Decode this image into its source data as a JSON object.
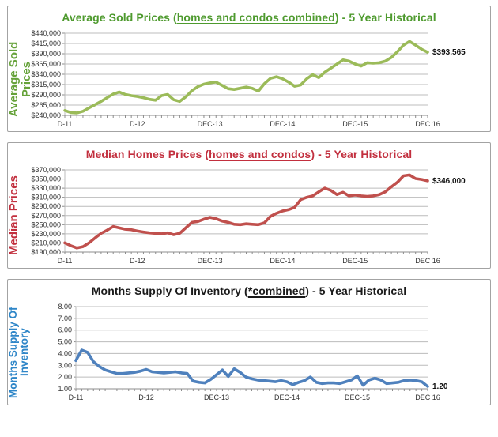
{
  "page": {
    "background": "#ffffff"
  },
  "panels": [
    {
      "title": {
        "pre": "Average Sold Prices (",
        "underlined": "homes and condos combined",
        "post": ") - 5 Year Historical",
        "color": "#4e9a2e"
      },
      "y_axis_label": {
        "line1": "Average Sold Prices",
        "line2": "",
        "color": "#66a23a"
      }
    },
    {
      "title": {
        "pre": "Median Homes Prices (",
        "underlined": "homes and condos",
        "post": ") - 5 Year Historical",
        "color": "#c22f3e"
      },
      "y_axis_label": {
        "line1": "Median Prices",
        "line2": "",
        "color": "#c22f3e"
      }
    },
    {
      "title": {
        "pre": "Months Supply Of Inventory (",
        "underlined": "*combined",
        "post": ") - 5 Year Historical",
        "color": "#1a1a1a"
      },
      "y_axis_label": {
        "line1": "Months Supply Of",
        "line2": "Inventory",
        "color": "#2e86c8"
      }
    }
  ],
  "chart_data": [
    {
      "type": "line",
      "title": "Average Sold Prices (homes and condos combined) - 5 Year Historical",
      "series_name": "Average Sold Prices",
      "x_unit": "month",
      "x_range": [
        "Dec-2011",
        "Dec-2016"
      ],
      "xtick_labels": [
        "D-11",
        "D-12",
        "DEC-13",
        "DEC-14",
        "DEC-15",
        "DEC 16"
      ],
      "xtick_month_index": [
        0,
        12,
        24,
        36,
        48,
        60
      ],
      "ylim": [
        240000,
        440000
      ],
      "ytick_values": [
        440000,
        415000,
        390000,
        365000,
        340000,
        315000,
        290000,
        265000,
        240000
      ],
      "ytick_labels": [
        "$440,000",
        "$415,000",
        "$390,000",
        "$365,000",
        "$340,000",
        "$315,000",
        "$290,000",
        "$265,000",
        "$240,000"
      ],
      "values": [
        252000,
        247000,
        246000,
        250000,
        258000,
        266000,
        274000,
        283000,
        292000,
        297000,
        291000,
        288000,
        286000,
        283000,
        279000,
        277000,
        288000,
        291000,
        278000,
        274000,
        285000,
        300000,
        310000,
        316000,
        319000,
        321000,
        313000,
        305000,
        303000,
        306000,
        309000,
        306000,
        299000,
        317000,
        330000,
        334000,
        329000,
        321000,
        311000,
        314000,
        329000,
        339000,
        332000,
        345000,
        355000,
        365000,
        375000,
        372000,
        365000,
        360000,
        368000,
        367000,
        368000,
        372000,
        381000,
        395000,
        411000,
        420000,
        411000,
        401000,
        393565
      ],
      "end_value_label": "$393,565",
      "line_color": "#9bbb59",
      "grid": "horizontal",
      "legend": "none"
    },
    {
      "type": "line",
      "title": "Median Homes Prices (homes and condos) - 5 Year Historical",
      "series_name": "Median Prices",
      "x_unit": "month",
      "x_range": [
        "Dec-2011",
        "Dec-2016"
      ],
      "xtick_labels": [
        "D-11",
        "D-12",
        "DEC-13",
        "DEC-14",
        "DEC-15",
        "DEC 16"
      ],
      "xtick_month_index": [
        0,
        12,
        24,
        36,
        48,
        60
      ],
      "ylim": [
        190000,
        370000
      ],
      "ytick_values": [
        370000,
        350000,
        330000,
        310000,
        290000,
        270000,
        250000,
        230000,
        210000,
        190000
      ],
      "ytick_labels": [
        "$370,000",
        "$350,000",
        "$330,000",
        "$310,000",
        "$290,000",
        "$270,000",
        "$250,000",
        "$230,000",
        "$210,000",
        "$190,000"
      ],
      "values": [
        210000,
        204000,
        199000,
        202000,
        210000,
        221000,
        231000,
        238000,
        246000,
        243000,
        240000,
        239000,
        236000,
        234000,
        232000,
        231000,
        230000,
        232000,
        228000,
        231000,
        243000,
        255000,
        257000,
        262000,
        266000,
        263000,
        258000,
        255000,
        251000,
        250000,
        252000,
        251000,
        250000,
        254000,
        268000,
        275000,
        280000,
        283000,
        288000,
        305000,
        310000,
        313000,
        322000,
        330000,
        325000,
        316000,
        321000,
        313000,
        315000,
        313000,
        312000,
        313000,
        316000,
        322000,
        333000,
        343000,
        357000,
        359000,
        351000,
        349000,
        346000
      ],
      "end_value_label": "$346,000",
      "line_color": "#c0504d",
      "grid": "horizontal",
      "legend": "none"
    },
    {
      "type": "line",
      "title": "Months Supply Of Inventory (*combined) - 5 Year Historical",
      "series_name": "Months Supply Of Inventory",
      "x_unit": "month",
      "x_range": [
        "Dec-2011",
        "Dec-2016"
      ],
      "xtick_labels": [
        "D-11",
        "D-12",
        "DEC-13",
        "DEC-14",
        "DEC-15",
        "DEC 16"
      ],
      "xtick_month_index": [
        0,
        12,
        24,
        36,
        48,
        60
      ],
      "ylim": [
        1.0,
        8.0
      ],
      "ytick_values": [
        8.0,
        7.0,
        6.0,
        5.0,
        4.0,
        3.0,
        2.0,
        1.0
      ],
      "ytick_labels": [
        "8.00",
        "7.00",
        "6.00",
        "5.00",
        "4.00",
        "3.00",
        "2.00",
        "1.00"
      ],
      "values": [
        3.4,
        4.3,
        4.1,
        3.3,
        2.9,
        2.6,
        2.45,
        2.3,
        2.3,
        2.35,
        2.4,
        2.5,
        2.65,
        2.45,
        2.4,
        2.35,
        2.4,
        2.45,
        2.35,
        2.3,
        1.65,
        1.55,
        1.5,
        1.8,
        2.2,
        2.6,
        2.05,
        2.7,
        2.4,
        2.0,
        1.85,
        1.75,
        1.7,
        1.65,
        1.6,
        1.7,
        1.6,
        1.35,
        1.55,
        1.7,
        2.0,
        1.55,
        1.45,
        1.5,
        1.5,
        1.45,
        1.6,
        1.75,
        2.1,
        1.3,
        1.75,
        1.9,
        1.75,
        1.45,
        1.5,
        1.55,
        1.7,
        1.75,
        1.7,
        1.6,
        1.2
      ],
      "end_value_label": "1.20",
      "line_color": "#4f81bd",
      "grid": "horizontal",
      "legend": "none"
    }
  ]
}
